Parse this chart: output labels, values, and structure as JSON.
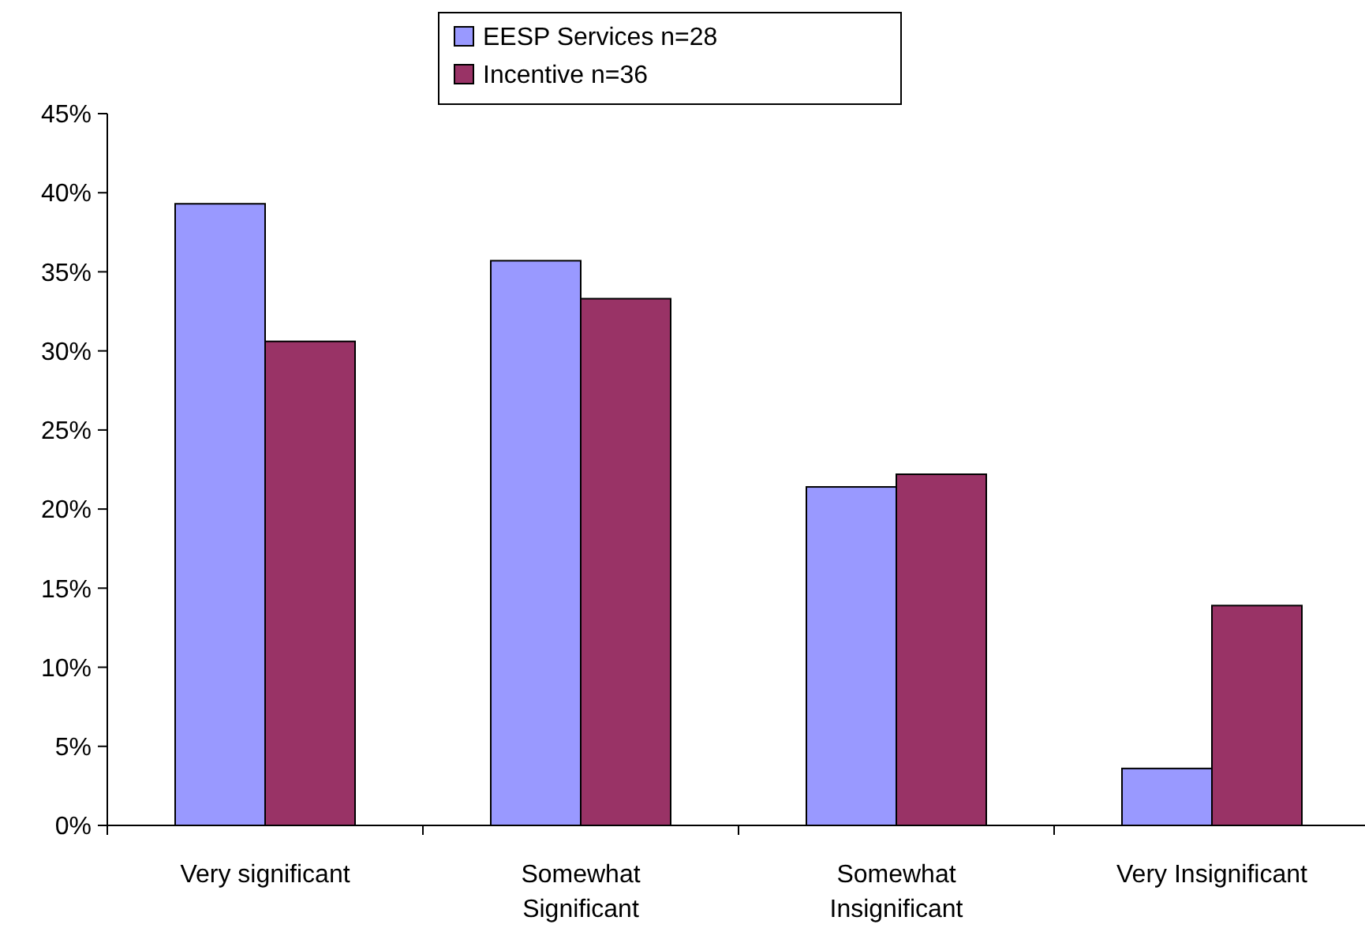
{
  "chart_data": {
    "type": "bar",
    "categories": [
      "Very significant",
      "Somewhat Significant",
      "Somewhat Insignificant",
      "Very Insignificant"
    ],
    "series": [
      {
        "name": "EESP Services n=28",
        "color": "#9999ff",
        "values": [
          39.3,
          35.7,
          21.4,
          3.6
        ]
      },
      {
        "name": "Incentive n=36",
        "color": "#993366",
        "values": [
          30.6,
          33.3,
          22.2,
          13.9
        ]
      }
    ],
    "ylim": [
      0,
      45
    ],
    "yticks": [
      {
        "value": 0,
        "label": "0%"
      },
      {
        "value": 5,
        "label": "5%"
      },
      {
        "value": 10,
        "label": "10%"
      },
      {
        "value": 15,
        "label": "15%"
      },
      {
        "value": 20,
        "label": "20%"
      },
      {
        "value": 25,
        "label": "25%"
      },
      {
        "value": 30,
        "label": "30%"
      },
      {
        "value": 35,
        "label": "35%"
      },
      {
        "value": 40,
        "label": "40%"
      },
      {
        "value": 45,
        "label": "45%"
      }
    ],
    "grid": false,
    "legend": "top"
  }
}
